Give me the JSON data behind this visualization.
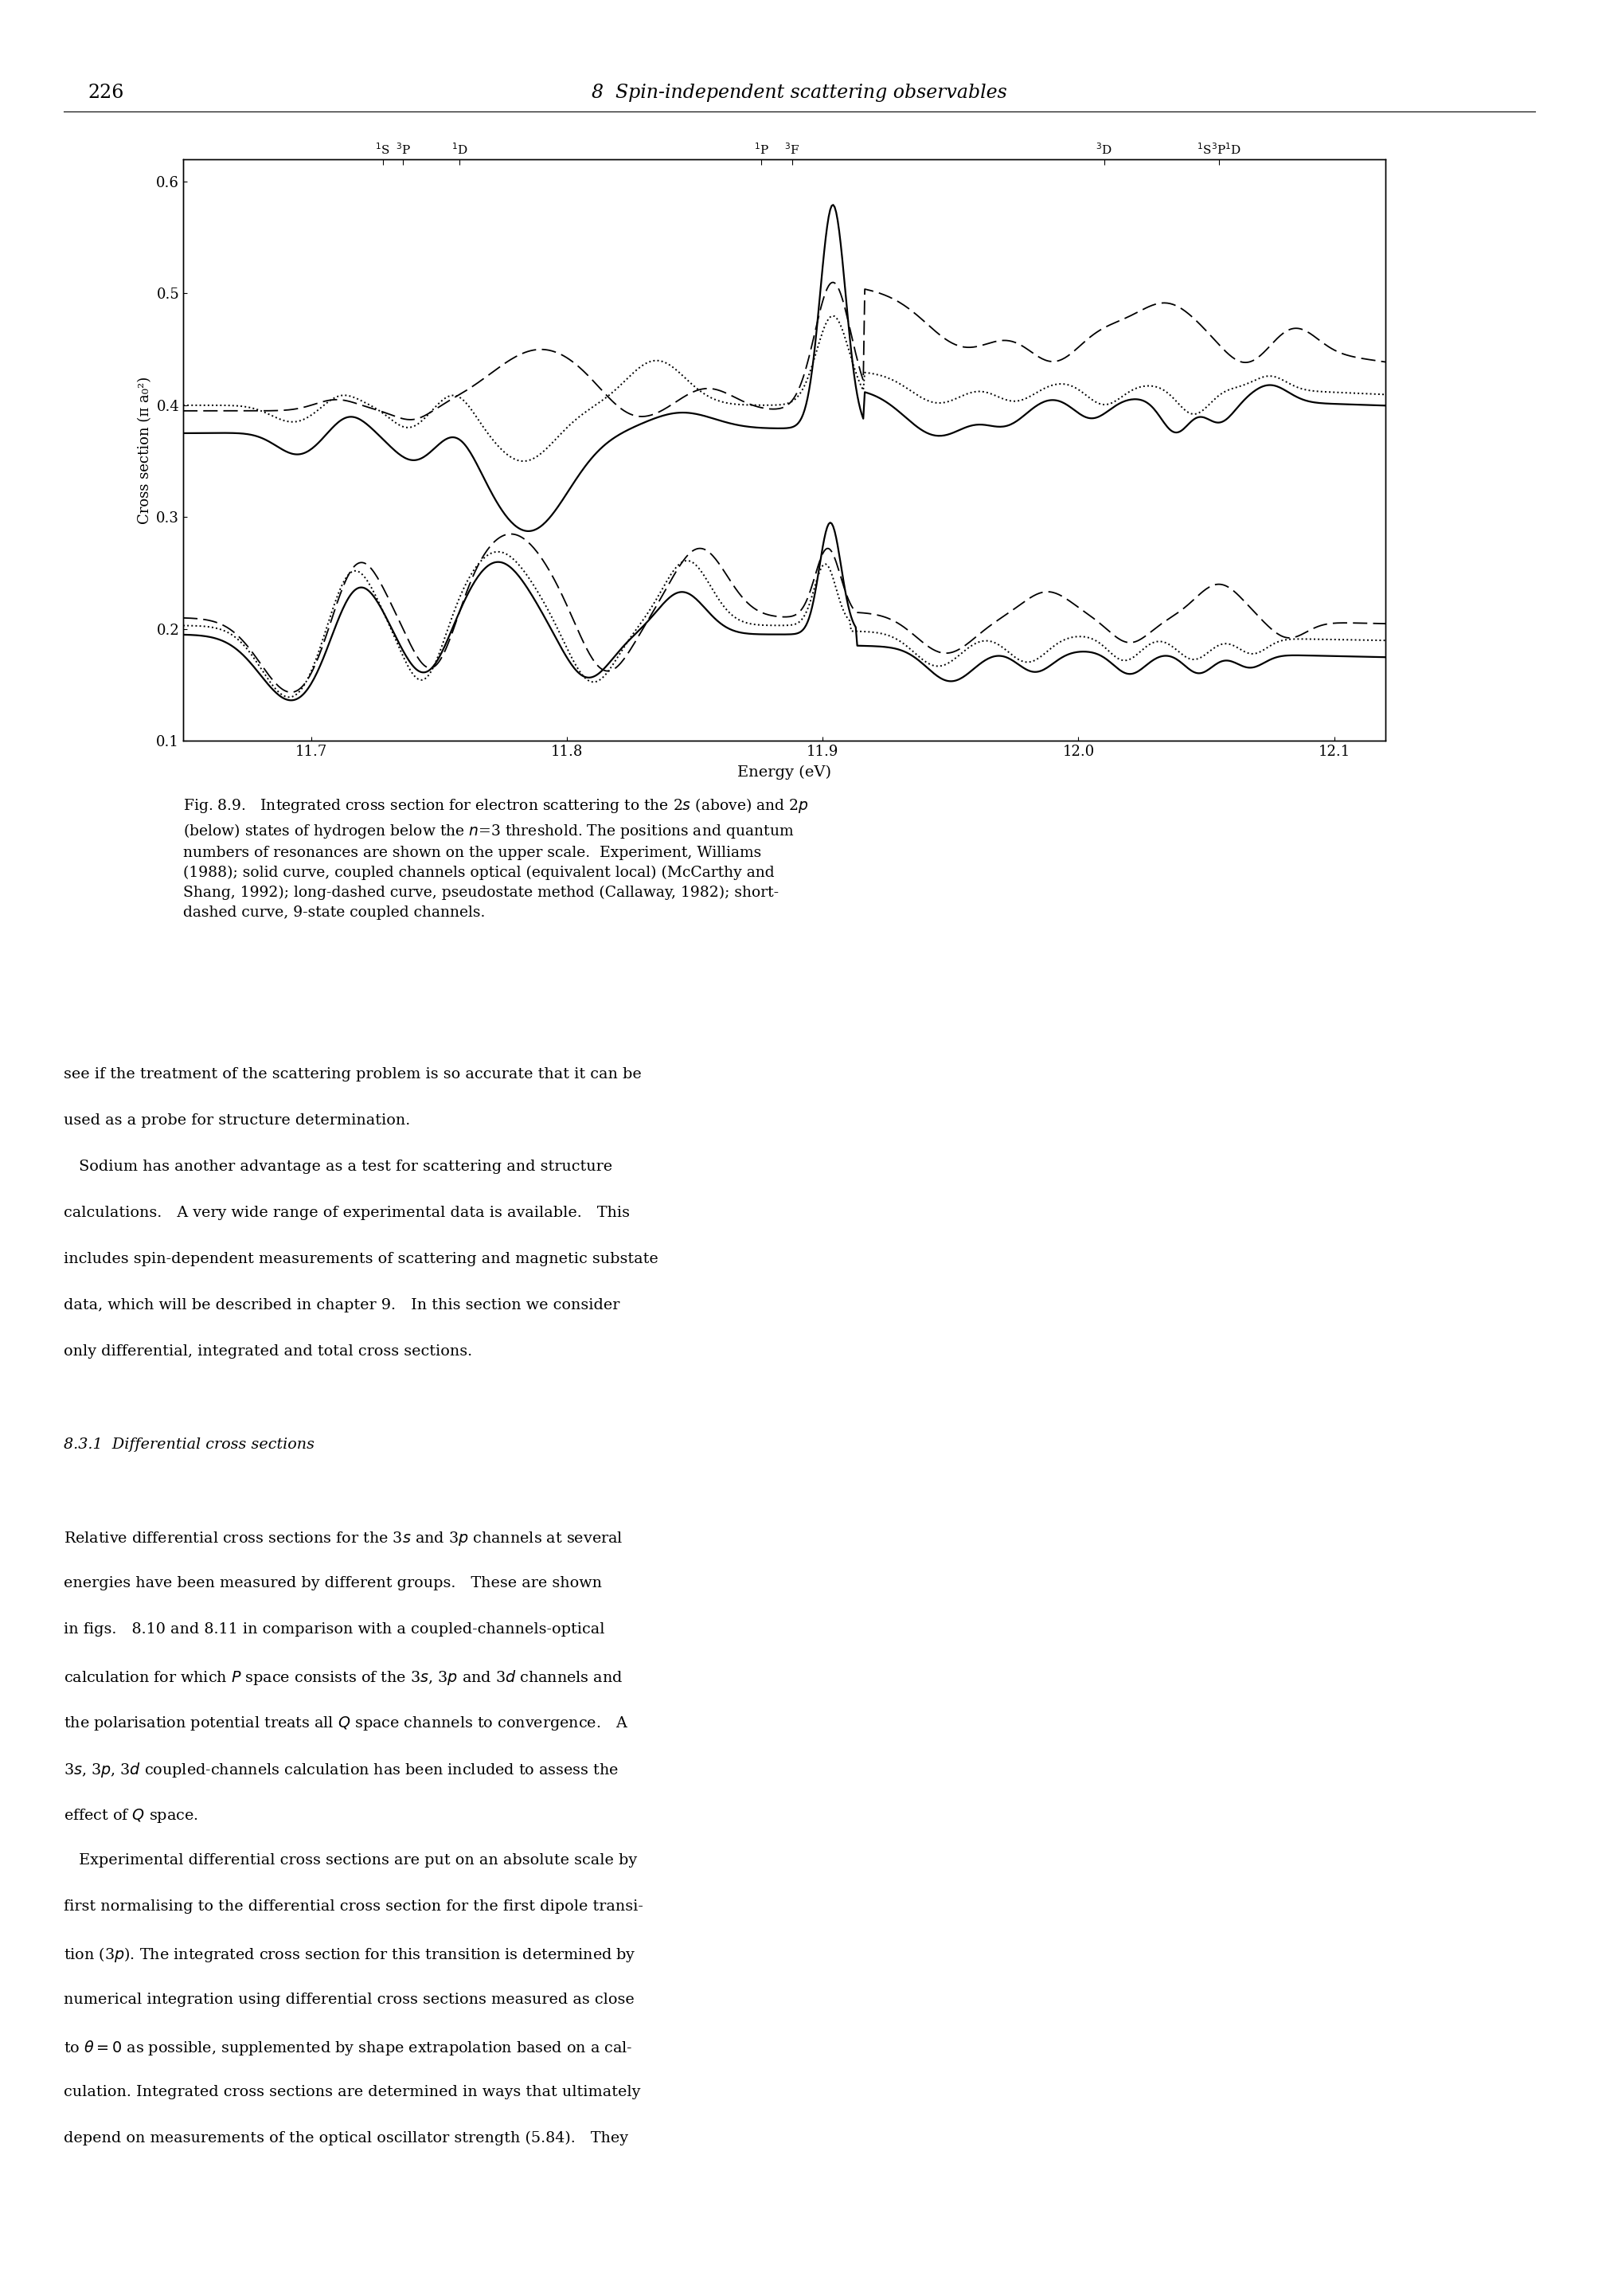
{
  "page_number": "226",
  "header_title": "8  Spin-independent scattering observables",
  "xlabel": "Energy (eV)",
  "ylabel": "Cross section (π a₀²)",
  "xlim": [
    11.65,
    12.12
  ],
  "ylim": [
    0.1,
    0.62
  ],
  "yticks": [
    0.1,
    0.2,
    0.3,
    0.4,
    0.5,
    0.6
  ],
  "xticks": [
    11.7,
    11.8,
    11.9,
    12.0,
    12.1
  ],
  "res_positions": [
    11.728,
    11.736,
    11.758,
    11.876,
    11.888,
    12.01,
    12.055
  ],
  "res_labels": [
    "$^1$S",
    "$^3$P",
    "$^1$D",
    "$^1$P",
    "$^3$F",
    "$^3$D",
    "$^1$S$^3$P$^1$D"
  ],
  "background_color": "#ffffff"
}
